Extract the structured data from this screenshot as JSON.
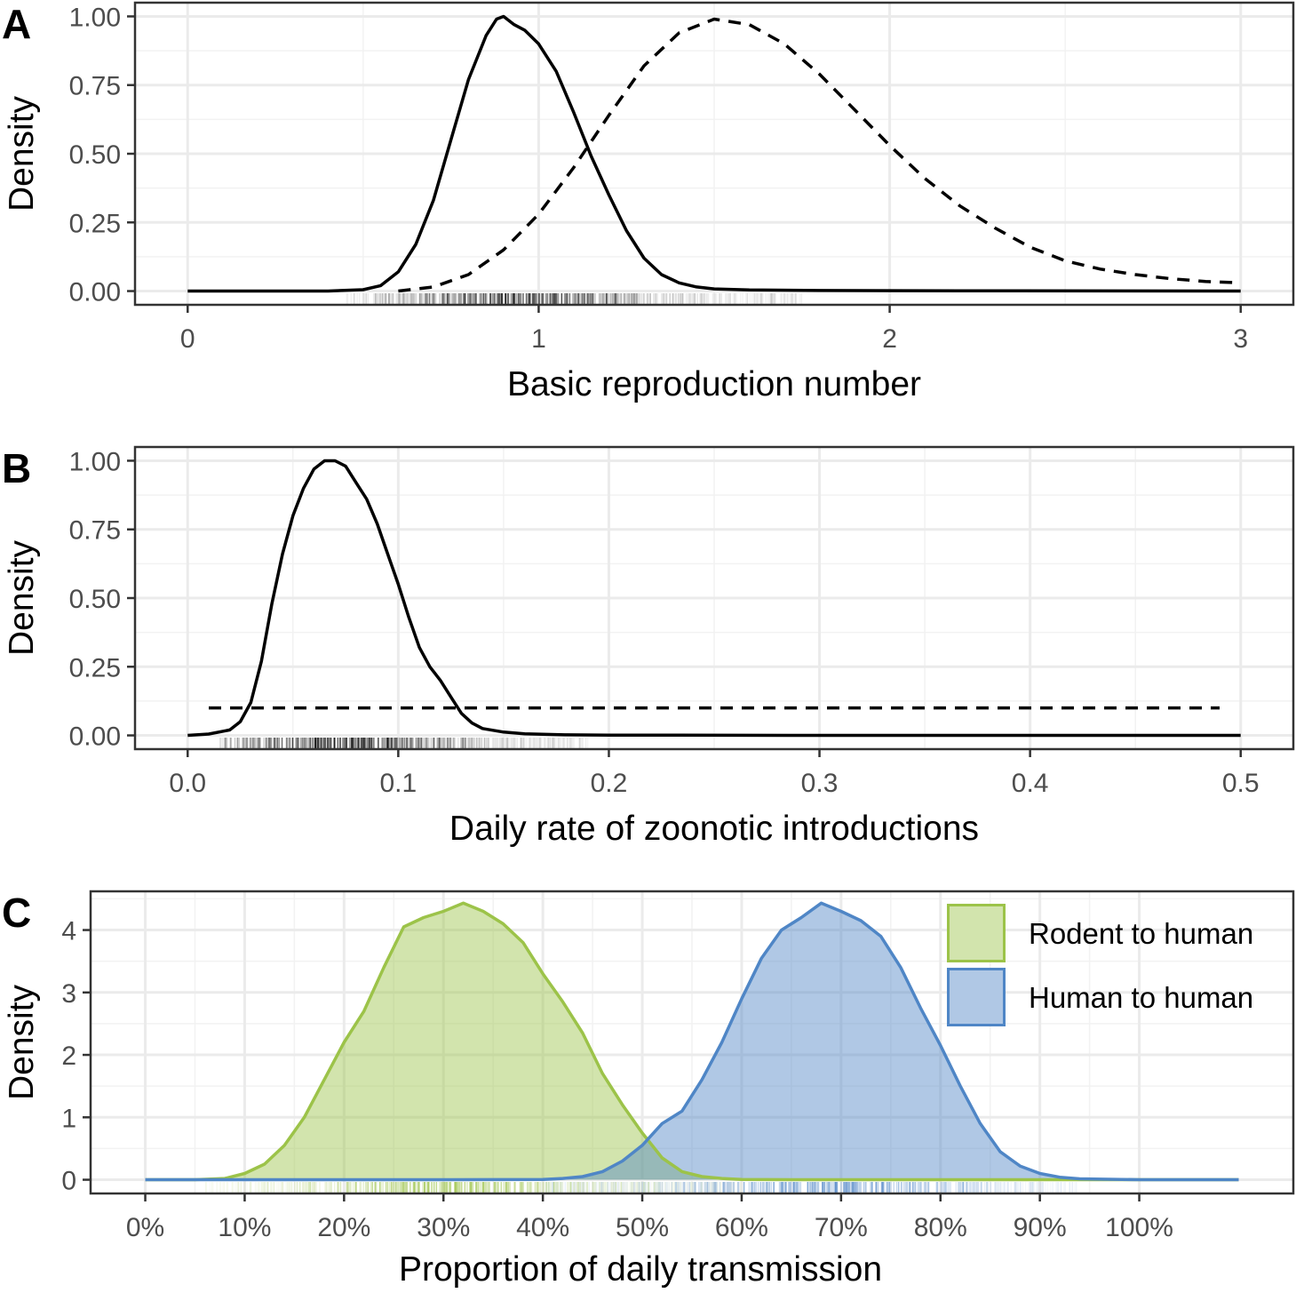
{
  "chart_data": [
    {
      "panel": "A",
      "type": "line",
      "xlabel": "Basic reproduction number",
      "ylabel": "Density",
      "xlim": [
        0,
        3
      ],
      "ylim": [
        0,
        1
      ],
      "xticks": [
        0,
        1,
        2,
        3
      ],
      "xtick_labels": [
        "0",
        "1",
        "2",
        "3"
      ],
      "yticks": [
        0,
        0.25,
        0.5,
        0.75,
        1
      ],
      "ytick_labels": [
        "0.00",
        "0.25",
        "0.50",
        "0.75",
        "1.00"
      ],
      "grid": true,
      "rug": {
        "from": 0.45,
        "to": 1.75,
        "center": 0.95,
        "spread": 0.2
      },
      "series": [
        {
          "style": "solid",
          "x": [
            0,
            0.4,
            0.5,
            0.55,
            0.6,
            0.65,
            0.7,
            0.75,
            0.8,
            0.85,
            0.88,
            0.9,
            0.93,
            0.96,
            1.0,
            1.05,
            1.1,
            1.15,
            1.2,
            1.25,
            1.3,
            1.35,
            1.4,
            1.45,
            1.5,
            1.6,
            1.8,
            2.2,
            3.0
          ],
          "y": [
            0,
            0,
            0.005,
            0.02,
            0.07,
            0.17,
            0.33,
            0.55,
            0.77,
            0.93,
            0.99,
            1.0,
            0.97,
            0.95,
            0.9,
            0.8,
            0.65,
            0.49,
            0.35,
            0.22,
            0.12,
            0.06,
            0.03,
            0.015,
            0.008,
            0.004,
            0.002,
            0.001,
            0
          ]
        },
        {
          "style": "dashed",
          "x": [
            0.6,
            0.7,
            0.8,
            0.9,
            1.0,
            1.1,
            1.2,
            1.3,
            1.4,
            1.5,
            1.6,
            1.7,
            1.8,
            1.9,
            2.0,
            2.1,
            2.2,
            2.3,
            2.4,
            2.5,
            2.6,
            2.7,
            2.8,
            2.9,
            3.0
          ],
          "y": [
            0.0,
            0.015,
            0.06,
            0.15,
            0.28,
            0.45,
            0.64,
            0.82,
            0.94,
            0.99,
            0.97,
            0.9,
            0.79,
            0.66,
            0.53,
            0.41,
            0.31,
            0.23,
            0.16,
            0.11,
            0.08,
            0.06,
            0.045,
            0.035,
            0.03
          ]
        }
      ]
    },
    {
      "panel": "B",
      "type": "line",
      "xlabel": "Daily rate of zoonotic introductions",
      "ylabel": "Density",
      "xlim": [
        0,
        0.5
      ],
      "ylim": [
        0,
        1
      ],
      "xticks": [
        0,
        0.1,
        0.2,
        0.3,
        0.4,
        0.5
      ],
      "xtick_labels": [
        "0.0",
        "0.1",
        "0.2",
        "0.3",
        "0.4",
        "0.5"
      ],
      "yticks": [
        0,
        0.25,
        0.5,
        0.75,
        1
      ],
      "ytick_labels": [
        "0.00",
        "0.25",
        "0.50",
        "0.75",
        "1.00"
      ],
      "grid": true,
      "rug": {
        "from": 0.015,
        "to": 0.19,
        "center": 0.075,
        "spread": 0.03
      },
      "series": [
        {
          "style": "solid",
          "x": [
            0,
            0.01,
            0.02,
            0.025,
            0.03,
            0.035,
            0.04,
            0.045,
            0.05,
            0.055,
            0.06,
            0.065,
            0.07,
            0.075,
            0.08,
            0.085,
            0.09,
            0.095,
            0.1,
            0.105,
            0.11,
            0.115,
            0.12,
            0.125,
            0.13,
            0.135,
            0.14,
            0.15,
            0.16,
            0.18,
            0.2,
            0.3,
            0.5
          ],
          "y": [
            0,
            0.005,
            0.02,
            0.05,
            0.12,
            0.27,
            0.48,
            0.66,
            0.8,
            0.9,
            0.97,
            1.0,
            1.0,
            0.98,
            0.92,
            0.86,
            0.77,
            0.66,
            0.55,
            0.43,
            0.32,
            0.25,
            0.2,
            0.14,
            0.08,
            0.045,
            0.025,
            0.012,
            0.006,
            0.002,
            0.001,
            0,
            0
          ]
        },
        {
          "style": "dashed",
          "x": [
            0.01,
            0.49
          ],
          "y": [
            0.1,
            0.1
          ]
        }
      ]
    },
    {
      "panel": "C",
      "type": "area",
      "xlabel": "Proportion of daily transmission",
      "ylabel": "Density",
      "xlim": [
        0,
        1.1
      ],
      "ylim": [
        0,
        4.4
      ],
      "xticks": [
        0,
        0.1,
        0.2,
        0.3,
        0.4,
        0.5,
        0.6,
        0.7,
        0.8,
        0.9,
        1.0
      ],
      "xtick_labels": [
        "0%",
        "10%",
        "20%",
        "30%",
        "40%",
        "50%",
        "60%",
        "70%",
        "80%",
        "90%",
        "100%"
      ],
      "yticks": [
        0,
        1,
        2,
        3,
        4
      ],
      "ytick_labels": [
        "0",
        "1",
        "2",
        "3",
        "4"
      ],
      "grid": true,
      "legend": "top-right",
      "series": [
        {
          "name": "Rodent to human",
          "color": "#9CC349",
          "fill": "#D1E4A2",
          "rug": {
            "from": 0.06,
            "to": 0.6,
            "center": 0.31,
            "spread": 0.09
          },
          "x": [
            0.0,
            0.05,
            0.08,
            0.1,
            0.12,
            0.14,
            0.16,
            0.18,
            0.2,
            0.22,
            0.24,
            0.26,
            0.28,
            0.3,
            0.32,
            0.34,
            0.36,
            0.38,
            0.4,
            0.42,
            0.44,
            0.46,
            0.48,
            0.5,
            0.52,
            0.54,
            0.56,
            0.58,
            0.6,
            0.65,
            0.7,
            1.1
          ],
          "y": [
            0,
            0,
            0.02,
            0.1,
            0.25,
            0.55,
            1.0,
            1.6,
            2.2,
            2.7,
            3.4,
            4.05,
            4.2,
            4.3,
            4.43,
            4.3,
            4.1,
            3.8,
            3.3,
            2.85,
            2.35,
            1.7,
            1.2,
            0.75,
            0.35,
            0.13,
            0.05,
            0.02,
            0.005,
            0,
            0,
            0
          ]
        },
        {
          "name": "Human to human",
          "color": "#4F86C6",
          "fill": "#9CBEE5",
          "rug": {
            "from": 0.4,
            "to": 0.94,
            "center": 0.69,
            "spread": 0.09
          },
          "x": [
            0.0,
            0.3,
            0.4,
            0.42,
            0.44,
            0.46,
            0.48,
            0.5,
            0.52,
            0.54,
            0.56,
            0.58,
            0.6,
            0.62,
            0.64,
            0.66,
            0.68,
            0.7,
            0.72,
            0.74,
            0.76,
            0.78,
            0.8,
            0.82,
            0.84,
            0.86,
            0.88,
            0.9,
            0.92,
            0.94,
            1.0,
            1.1
          ],
          "y": [
            0,
            0,
            0.005,
            0.02,
            0.05,
            0.13,
            0.3,
            0.55,
            0.9,
            1.1,
            1.6,
            2.2,
            2.9,
            3.55,
            4.0,
            4.2,
            4.43,
            4.3,
            4.15,
            3.9,
            3.4,
            2.75,
            2.15,
            1.5,
            0.9,
            0.45,
            0.22,
            0.1,
            0.04,
            0.015,
            0,
            0
          ]
        }
      ]
    }
  ],
  "panels": [
    {
      "tag": "A"
    },
    {
      "tag": "B"
    },
    {
      "tag": "C"
    }
  ]
}
